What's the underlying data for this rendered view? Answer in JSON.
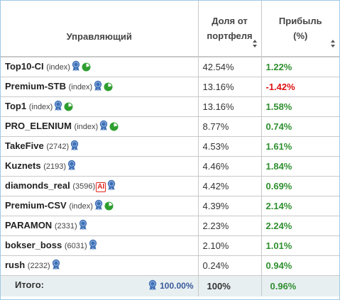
{
  "header": {
    "col1": "Управляющий",
    "col2_line1": "Доля от",
    "col2_line2": "портфеля",
    "col3_line1": "Прибыль",
    "col3_line2": "(%)"
  },
  "rows": [
    {
      "name": "Top10-CI",
      "tag": "(index)",
      "share": "42.54%",
      "profit": "1.22%",
      "positive": true,
      "pie": true,
      "ai": false
    },
    {
      "name": "Premium-STB",
      "tag": "(index)",
      "share": "13.16%",
      "profit": "-1.42%",
      "positive": false,
      "pie": true,
      "ai": false
    },
    {
      "name": "Top1",
      "tag": "(index)",
      "share": "13.16%",
      "profit": "1.58%",
      "positive": true,
      "pie": true,
      "ai": false
    },
    {
      "name": "PRO_ELENIUM",
      "tag": "(index)",
      "share": "8.77%",
      "profit": "0.74%",
      "positive": true,
      "pie": true,
      "ai": false
    },
    {
      "name": "TakeFive",
      "tag": "(2742)",
      "share": "4.53%",
      "profit": "1.61%",
      "positive": true,
      "pie": false,
      "ai": false
    },
    {
      "name": "Kuznets",
      "tag": "(2193)",
      "share": "4.46%",
      "profit": "1.84%",
      "positive": true,
      "pie": false,
      "ai": false
    },
    {
      "name": "diamonds_real",
      "tag": "(3596)",
      "share": "4.42%",
      "profit": "0.69%",
      "positive": true,
      "pie": false,
      "ai": true
    },
    {
      "name": "Premium-CSV",
      "tag": "(index)",
      "share": "4.39%",
      "profit": "2.14%",
      "positive": true,
      "pie": true,
      "ai": false
    },
    {
      "name": "PARAMON",
      "tag": "(2331)",
      "share": "2.23%",
      "profit": "2.24%",
      "positive": true,
      "pie": false,
      "ai": false
    },
    {
      "name": "bokser_boss",
      "tag": "(6031)",
      "share": "2.10%",
      "profit": "1.01%",
      "positive": true,
      "pie": false,
      "ai": false
    },
    {
      "name": "rush",
      "tag": "(2232)",
      "share": "0.24%",
      "profit": "0.94%",
      "positive": true,
      "pie": false,
      "ai": false
    }
  ],
  "ai_label": "AI",
  "total": {
    "label": "Итого:",
    "badge_value": "100.00%",
    "share": "100%",
    "profit": "0.96%"
  },
  "colors": {
    "positive": "#2f8f2f",
    "negative": "#dd1111",
    "badge": "#3d6fb5",
    "pie": "#2e9e2e",
    "border": "#9fc9e4"
  },
  "icons": [
    "medal-icon",
    "pie-chart-icon",
    "sort-icon"
  ]
}
